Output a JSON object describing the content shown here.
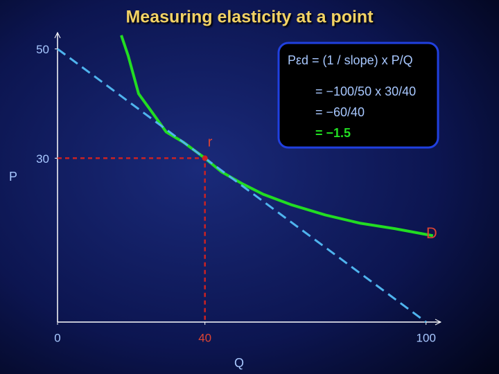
{
  "chart_data": {
    "type": "line",
    "title": "Measuring elasticity at a point",
    "xlabel": "Q",
    "ylabel": "P",
    "xlim": [
      0,
      104
    ],
    "ylim": [
      0,
      53
    ],
    "xticks": [
      0,
      40,
      100
    ],
    "yticks": [
      30,
      50
    ],
    "series": [
      {
        "name": "D",
        "color": "#22dd22",
        "style": "solid",
        "x": [
          17.3,
          19.2,
          22,
          24.8,
          29.5,
          34.2,
          40,
          44.5,
          50.2,
          55.8,
          63.3,
          72.7,
          82.1,
          91.5,
          101.9
        ],
        "values": [
          52.5,
          48.7,
          41.8,
          39.2,
          34.8,
          32.9,
          30,
          27.5,
          25.3,
          23.4,
          21.5,
          19.6,
          18.1,
          17.1,
          15.8
        ]
      },
      {
        "color": "#4fb4ee",
        "style": "dashed",
        "x": [
          0,
          100
        ],
        "values": [
          50,
          0
        ]
      }
    ],
    "point": {
      "name": "r",
      "color": "#cc2222",
      "x": 40,
      "y": 30
    },
    "annotations": [
      "Pεd =  (1 / slope) x P/Q",
      "=  −100/50 x 30/40",
      "=  −60/40",
      "=  −1.5"
    ]
  }
}
